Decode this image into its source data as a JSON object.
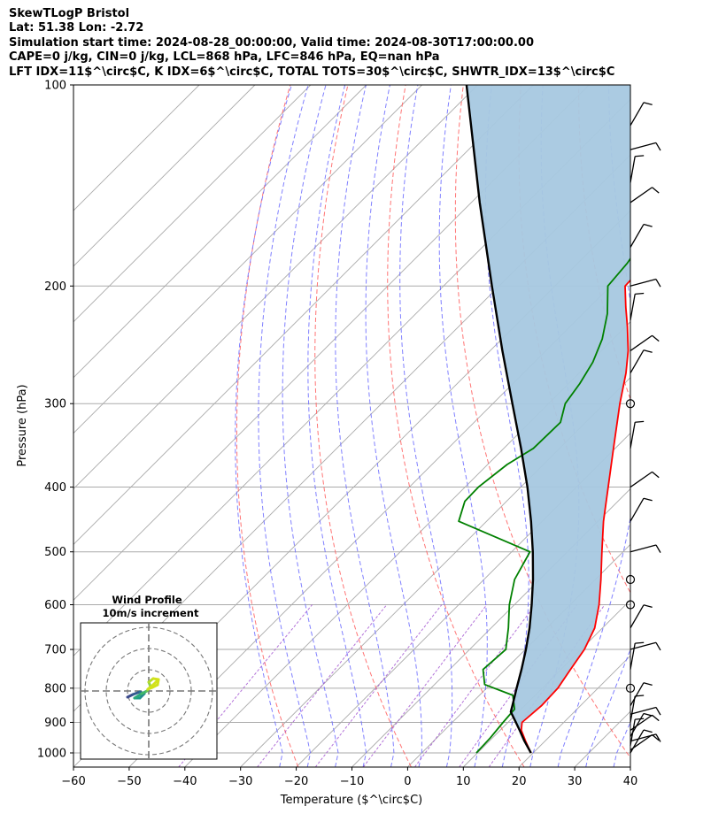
{
  "titles": {
    "line1": "SkewTLogP Bristol",
    "line2": "Lat: 51.38   Lon: -2.72",
    "line3": "Simulation start time: 2024-08-28_00:00:00, Valid time: 2024-08-30T17:00:00.00",
    "line4": "CAPE=0 j/kg, CIN=0 j/kg, LCL=868 hPa, LFC=846 hPa, EQ=nan hPa",
    "line5": "LFT IDX=11$^\\circ$C, K IDX=6$^\\circ$C, TOTAL TOTS=30$^\\circ$C, SHWTR_IDX=13$^\\circ$C"
  },
  "chart_data": {
    "type": "line",
    "title": "SkewTLogP Bristol",
    "xlabel": "Temperature ($^\\circ$C)",
    "ylabel": "Pressure (hPa)",
    "x_range": [
      -60,
      40
    ],
    "y_range_hpa": [
      1050,
      100
    ],
    "y_scale": "log",
    "skew": "temperature lines skewed 45 degrees",
    "x_ticks": [
      -60,
      -50,
      -40,
      -30,
      -20,
      -10,
      0,
      10,
      20,
      30,
      40
    ],
    "y_ticks": [
      100,
      200,
      300,
      400,
      500,
      600,
      700,
      800,
      900,
      1000
    ],
    "grid": true,
    "colors": {
      "temperature": "#ff0000",
      "dewpoint": "#008000",
      "parcel": "#000000",
      "cape_fill": "#a6c8e0",
      "dry_adiabats": "#ff6666",
      "moist_adiabats": "#6a6aff",
      "mixing_ratio": "#a050d0",
      "isotherms": "#aaaaaa"
    },
    "series": [
      {
        "name": "Temperature",
        "points": [
          [
            1000,
            19.6
          ],
          [
            960,
            16.5
          ],
          [
            925,
            13.8
          ],
          [
            900,
            12.5
          ],
          [
            850,
            13.0
          ],
          [
            800,
            12.8
          ],
          [
            750,
            11.7
          ],
          [
            700,
            10.6
          ],
          [
            650,
            8.6
          ],
          [
            600,
            5.2
          ],
          [
            550,
            1.0
          ],
          [
            500,
            -3.8
          ],
          [
            450,
            -9.0
          ],
          [
            400,
            -14.3
          ],
          [
            350,
            -20.3
          ],
          [
            300,
            -27.2
          ],
          [
            270,
            -31.6
          ],
          [
            250,
            -35.2
          ],
          [
            230,
            -39.7
          ],
          [
            215,
            -43.5
          ],
          [
            200,
            -47.4
          ],
          [
            190,
            -47.6
          ],
          [
            175,
            -47.8
          ],
          [
            160,
            -48.3
          ],
          [
            150,
            -48.4
          ],
          [
            140,
            -47.8
          ],
          [
            130,
            -47.4
          ],
          [
            120,
            -47.6
          ],
          [
            110,
            -47.8
          ],
          [
            100,
            -47.6
          ]
        ]
      },
      {
        "name": "Dewpoint",
        "points": [
          [
            1000,
            9.8
          ],
          [
            950,
            9.6
          ],
          [
            900,
            9.1
          ],
          [
            860,
            8.8
          ],
          [
            820,
            6.0
          ],
          [
            790,
            -1.0
          ],
          [
            750,
            -4.0
          ],
          [
            700,
            -3.5
          ],
          [
            650,
            -6.9
          ],
          [
            600,
            -10.9
          ],
          [
            550,
            -14.5
          ],
          [
            500,
            -16.7
          ],
          [
            450,
            -35.0
          ],
          [
            420,
            -37.5
          ],
          [
            400,
            -37.6
          ],
          [
            370,
            -36.5
          ],
          [
            350,
            -34.7
          ],
          [
            320,
            -34.5
          ],
          [
            300,
            -37.0
          ],
          [
            280,
            -38.0
          ],
          [
            260,
            -39.5
          ],
          [
            240,
            -42.0
          ],
          [
            220,
            -45.6
          ],
          [
            200,
            -50.5
          ],
          [
            185,
            -51.1
          ],
          [
            175,
            -52.0
          ],
          [
            160,
            -56.2
          ],
          [
            150,
            -60.2
          ],
          [
            130,
            -58.4
          ],
          [
            115,
            -57.5
          ],
          [
            100,
            -58.0
          ]
        ]
      },
      {
        "name": "Parcel",
        "points": [
          [
            1000,
            19.6
          ],
          [
            960,
            16.3
          ],
          [
            925,
            13.5
          ],
          [
            900,
            11.4
          ],
          [
            868,
            8.6
          ],
          [
            850,
            7.8
          ],
          [
            800,
            5.4
          ],
          [
            750,
            2.9
          ],
          [
            700,
            0.1
          ],
          [
            650,
            -3.1
          ],
          [
            600,
            -6.9
          ],
          [
            550,
            -11.2
          ],
          [
            500,
            -16.2
          ],
          [
            450,
            -22.0
          ],
          [
            400,
            -28.8
          ],
          [
            350,
            -36.9
          ],
          [
            300,
            -46.5
          ],
          [
            250,
            -57.8
          ],
          [
            200,
            -71.3
          ],
          [
            150,
            -88.5
          ],
          [
            100,
            -112.0
          ]
        ]
      }
    ],
    "wind_barbs_hpa": [
      1000,
      990,
      975,
      960,
      945,
      925,
      900,
      875,
      850,
      800,
      750,
      700,
      650,
      600,
      550,
      500,
      450,
      400,
      350,
      300,
      270,
      250,
      225,
      200,
      175,
      150,
      140,
      125,
      115
    ],
    "hodograph": {
      "title": "Wind Profile",
      "subtitle": "10m/s increment"
    }
  }
}
